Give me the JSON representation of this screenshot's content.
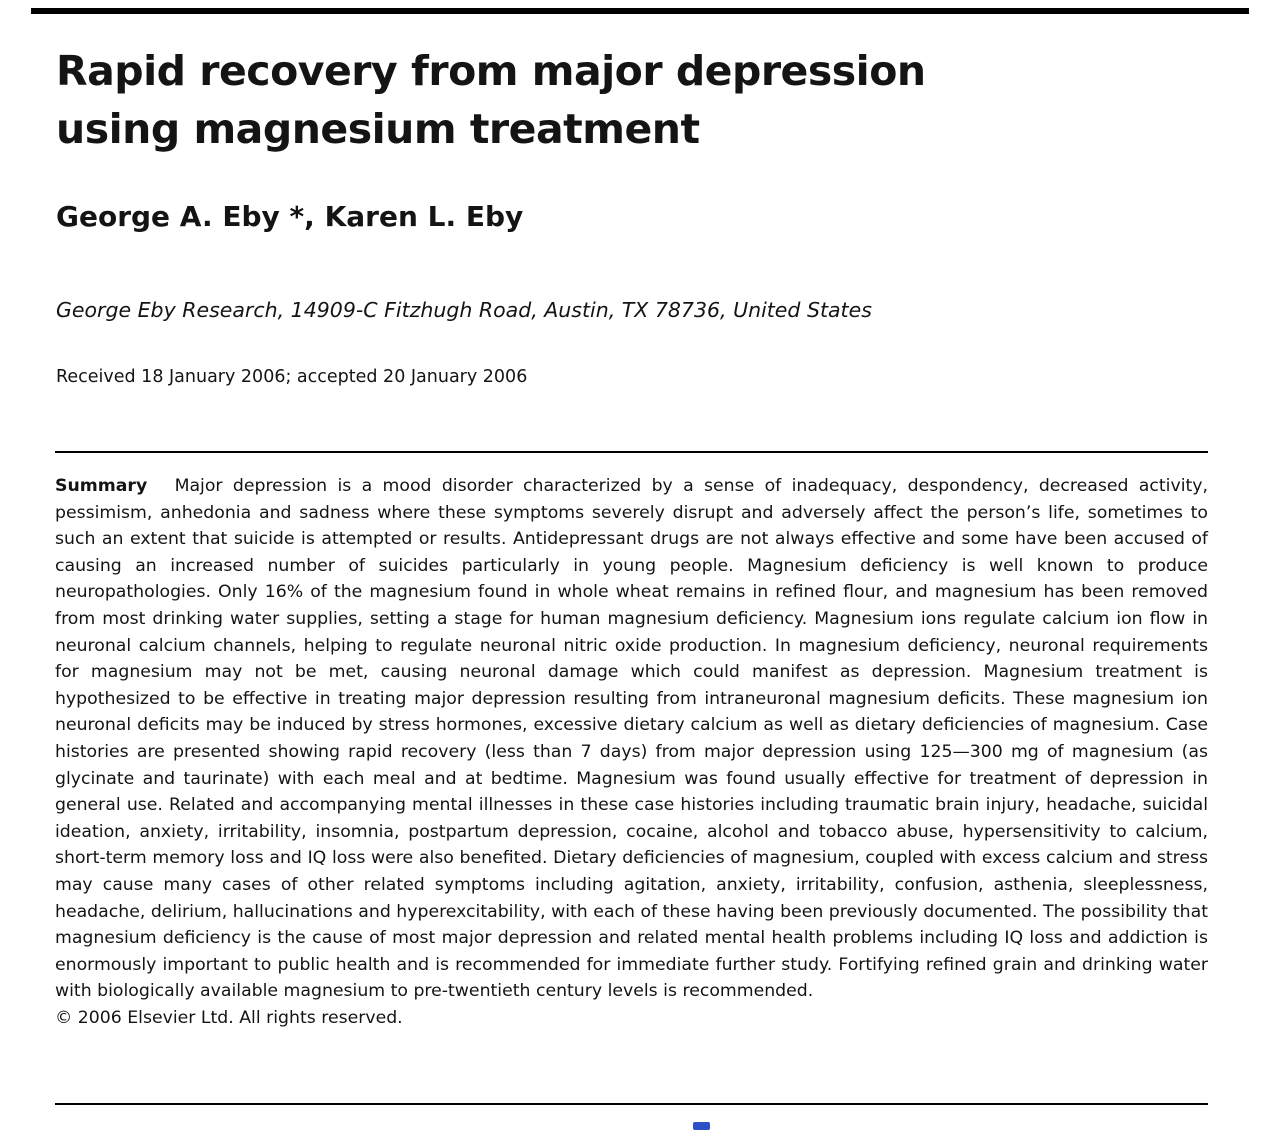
{
  "header": {
    "title_line1": "Rapid recovery from major depression",
    "title_line2": "using magnesium treatment",
    "authors": "George A. Eby *, Karen L. Eby",
    "affiliation": "George Eby Research, 14909-C Fitzhugh Road, Austin, TX 78736, United States",
    "received": "Received 18 January 2006; accepted 20 January 2006"
  },
  "abstract": {
    "label": "Summary",
    "text": "Major depression is a mood disorder characterized by a sense of inadequacy, despondency, decreased activity, pessimism, anhedonia and sadness where these symptoms severely disrupt and adversely affect the person’s life, sometimes to such an extent that suicide is attempted or results. Antidepressant drugs are not always effective and some have been accused of causing an increased number of suicides particularly in young people. Magnesium deficiency is well known to produce neuropathologies. Only 16% of the magnesium found in whole wheat remains in refined flour, and magnesium has been removed from most drinking water supplies, setting a stage for human magnesium deficiency. Magnesium ions regulate calcium ion flow in neuronal calcium channels, helping to regulate neuronal nitric oxide production. In magnesium deficiency, neuronal requirements for magnesium may not be met, causing neuronal damage which could manifest as depression. Magnesium treatment is hypothesized to be effective in treating major depression resulting from intraneuronal magnesium deficits. These magnesium ion neuronal deficits may be induced by stress hormones, excessive dietary calcium as well as dietary deficiencies of magnesium. Case histories are presented showing rapid recovery (less than 7 days) from major depression using 125—300 mg of magnesium (as glycinate and taurinate) with each meal and at bedtime. Magnesium was found usually effective for treatment of depression in general use. Related and accompanying mental illnesses in these case histories including traumatic brain injury, headache, suicidal ideation, anxiety, irritability, insomnia, postpartum depression, cocaine, alcohol and tobacco abuse, hypersensitivity to calcium, short-term memory loss and IQ loss were also benefited. Dietary deficiencies of magnesium, coupled with excess calcium and stress may cause many cases of other related symptoms including agitation, anxiety, irritability, confusion, asthenia, sleeplessness, headache, delirium, hallucinations and hyperexcitability, with each of these having been previously documented. The possibility that magnesium deficiency is the cause of most major depression and related mental health problems including IQ loss and addiction is enormously important to public health and is recommended for immediate further study. Fortifying refined grain and drinking water with biologically available magnesium to pre-twentieth century levels is recommended.",
    "copyright": "© 2006 Elsevier Ltd. All rights reserved."
  }
}
